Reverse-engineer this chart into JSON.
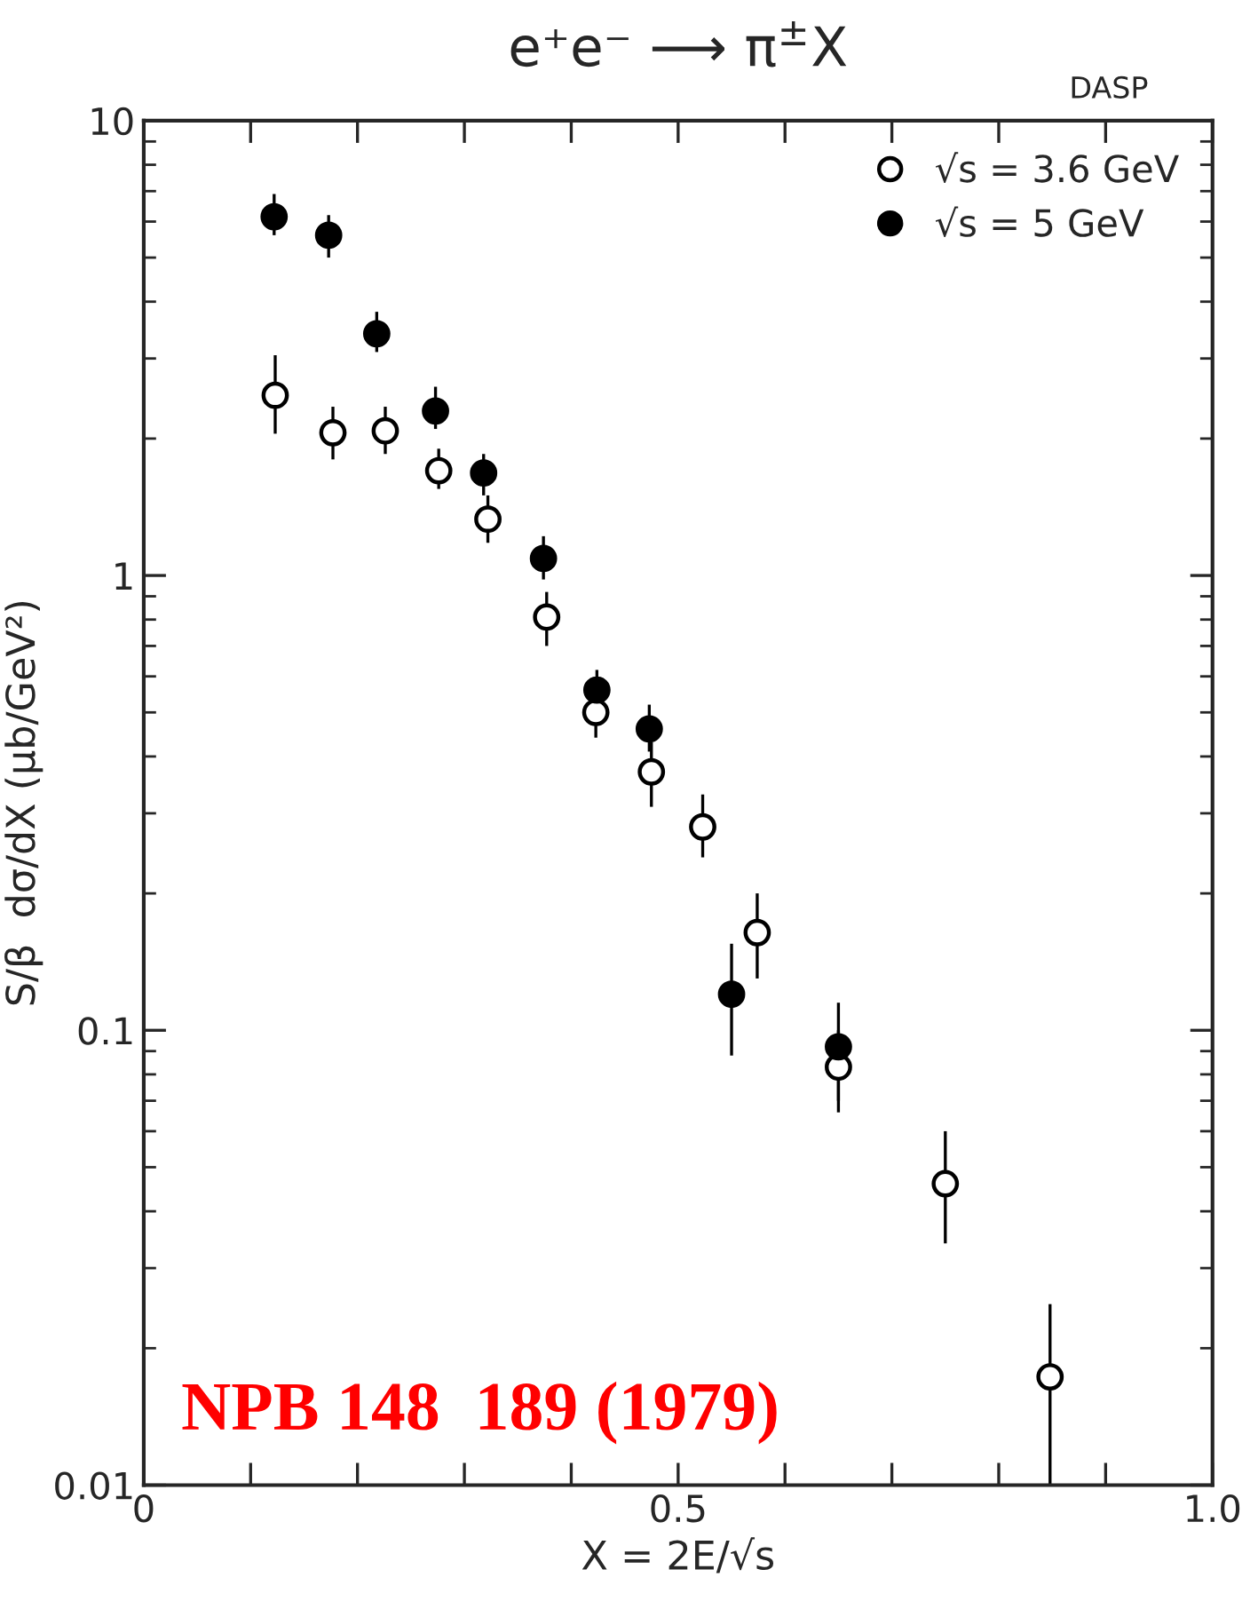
{
  "chart_data": {
    "type": "scatter",
    "title": "e⁺e⁻ ⟶ π$^{±}$X",
    "xlabel": "X = 2E/√s",
    "ylabel": "S/β  dσ/dX (μb/GeV²)",
    "annotations": [
      "DASP",
      "NPB 148  189 (1979)"
    ],
    "log": "y",
    "xlim": [
      0,
      1.0
    ],
    "ylim": [
      0.01,
      10
    ],
    "xticks": [
      0,
      {
        "value": 0.1,
        "label": null
      },
      {
        "value": 0.2,
        "label": null
      },
      {
        "value": 0.3,
        "label": null
      },
      {
        "value": 0.4,
        "label": null
      },
      0.5,
      {
        "value": 0.6,
        "label": null
      },
      {
        "value": 0.7,
        "label": null
      },
      {
        "value": 0.8,
        "label": null
      },
      {
        "value": 0.9,
        "label": null
      },
      {
        "value": 1.0,
        "label": "1.0"
      }
    ],
    "yticks": [
      0.01,
      0.1,
      1,
      10
    ],
    "grid": false,
    "legend": "top right",
    "marker": "circle",
    "series": [
      {
        "name": "√s = 3.6 GeV",
        "color": "#ffffff",
        "x": [
          0.123,
          0.177,
          0.226,
          0.276,
          0.322,
          0.377,
          0.423,
          0.475,
          0.523,
          0.574,
          0.65,
          0.75,
          0.848
        ],
        "values": [
          2.49,
          2.06,
          2.08,
          1.7,
          1.33,
          0.81,
          0.5,
          0.37,
          0.28,
          0.164,
          0.083,
          0.046,
          0.0173
        ],
        "errors": [
          [
            2.05,
            3.05
          ],
          [
            1.8,
            2.35
          ],
          [
            1.85,
            2.35
          ],
          [
            1.55,
            1.9
          ],
          [
            1.18,
            1.5
          ],
          [
            0.7,
            0.92
          ],
          [
            0.44,
            0.5
          ],
          [
            0.31,
            0.43
          ],
          [
            0.24,
            0.33
          ],
          [
            0.13,
            0.2
          ],
          [
            0.07,
            0.1
          ],
          [
            0.034,
            0.06
          ],
          [
            0.01,
            0.025
          ]
        ]
      },
      {
        "name": "√s = 5 GeV",
        "color": "#000000",
        "x": [
          0.122,
          0.173,
          0.218,
          0.273,
          0.318,
          0.374,
          0.424,
          0.473,
          0.55,
          0.65
        ],
        "values": [
          6.15,
          5.6,
          3.4,
          2.3,
          1.68,
          1.09,
          0.56,
          0.46,
          0.12,
          0.092
        ],
        "errors": [
          [
            5.6,
            6.9
          ],
          [
            5.0,
            6.2
          ],
          [
            3.1,
            3.8
          ],
          [
            2.1,
            2.6
          ],
          [
            1.5,
            1.85
          ],
          [
            0.98,
            1.22
          ],
          [
            0.56,
            0.62
          ],
          [
            0.41,
            0.52
          ],
          [
            0.088,
            0.155
          ],
          [
            0.066,
            0.115
          ]
        ]
      }
    ]
  }
}
